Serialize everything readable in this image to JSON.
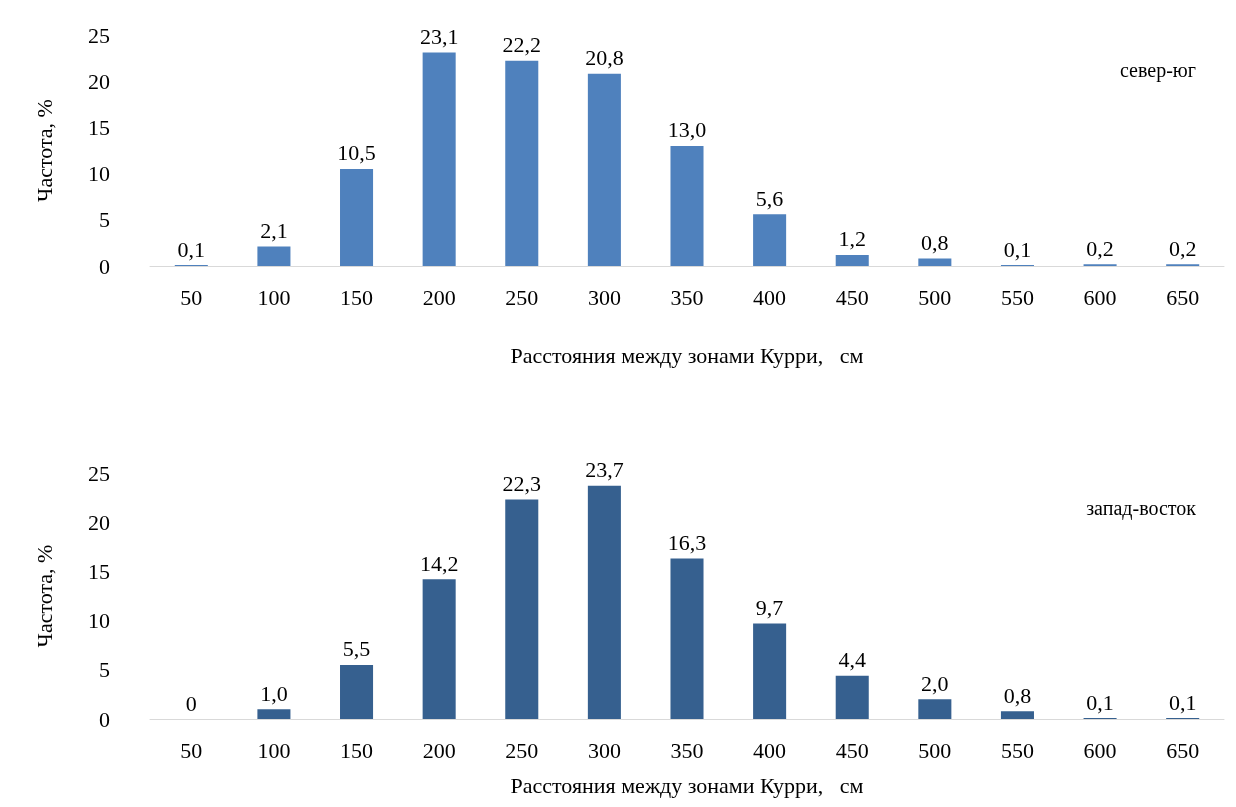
{
  "chart_data": [
    {
      "type": "bar",
      "xlabel": "Расстояния между зонами Курри,   см",
      "ylabel": "Частота, %",
      "annotations": [
        "север-юг"
      ],
      "categories": [
        "50",
        "100",
        "150",
        "200",
        "250",
        "300",
        "350",
        "400",
        "450",
        "500",
        "550",
        "600",
        "650"
      ],
      "values": [
        0.1,
        2.1,
        10.5,
        23.1,
        22.2,
        20.8,
        13.0,
        5.6,
        1.2,
        0.8,
        0.1,
        0.2,
        0.2
      ],
      "value_labels": [
        "0,1",
        "2,1",
        "10,5",
        "23,1",
        "22,2",
        "20,8",
        "13,0",
        "5,6",
        "1,2",
        "0,8",
        "0,1",
        "0,2",
        "0,2"
      ],
      "color": "#4f81bd",
      "ylim": [
        0,
        25
      ],
      "yticks": [
        0,
        5,
        10,
        15,
        20,
        25
      ]
    },
    {
      "type": "bar",
      "xlabel": "Расстояния между зонами Курри,   см",
      "ylabel": "Частота, %",
      "annotations": [
        "запад-восток"
      ],
      "categories": [
        "50",
        "100",
        "150",
        "200",
        "250",
        "300",
        "350",
        "400",
        "450",
        "500",
        "550",
        "600",
        "650"
      ],
      "values": [
        0,
        1.0,
        5.5,
        14.2,
        22.3,
        23.7,
        16.3,
        9.7,
        4.4,
        2.0,
        0.8,
        0.1,
        0.1
      ],
      "value_labels": [
        "0",
        "1,0",
        "5,5",
        "14,2",
        "22,3",
        "23,7",
        "16,3",
        "9,7",
        "4,4",
        "2,0",
        "0,8",
        "0,1",
        "0,1"
      ],
      "color": "#36608f",
      "ylim": [
        0,
        25
      ],
      "yticks": [
        0,
        5,
        10,
        15,
        20,
        25
      ]
    }
  ]
}
